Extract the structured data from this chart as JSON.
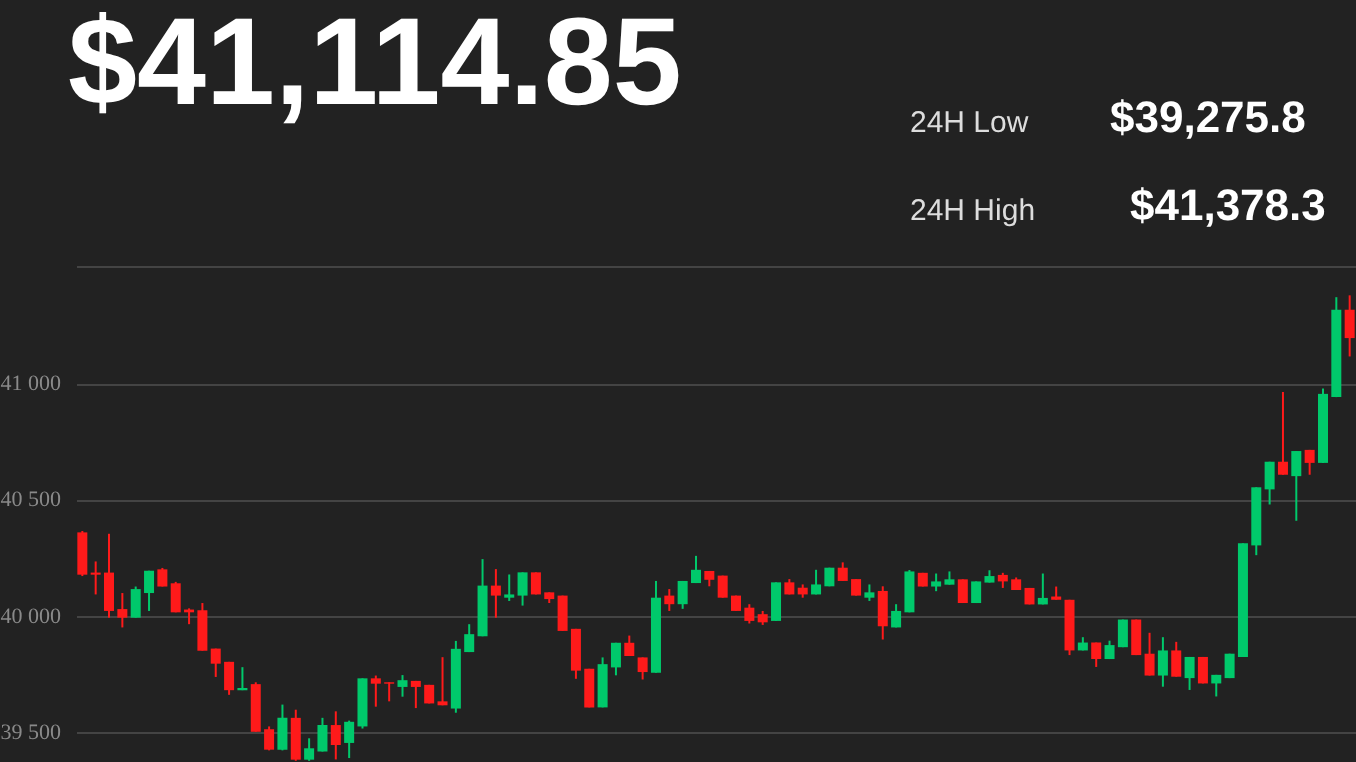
{
  "chart_data": {
    "type": "candlestick",
    "annotations": [
      "$41,114.85",
      "24H Low",
      "$39,275.8",
      "24H High",
      "$41,378.3"
    ],
    "categories": [
      null,
      null,
      null,
      null,
      null,
      null,
      null,
      null,
      null,
      null,
      null,
      null,
      null,
      null,
      null,
      null,
      null,
      null,
      null,
      null,
      null,
      null,
      null,
      null,
      null,
      null,
      null,
      null,
      null,
      null,
      null,
      null,
      null,
      null,
      null,
      null,
      null,
      null,
      null,
      null,
      null,
      null,
      null,
      null,
      null,
      null,
      null,
      null,
      null,
      null,
      null,
      null,
      null,
      null,
      null,
      null,
      null,
      null,
      null,
      null,
      null,
      null,
      null,
      null,
      null,
      null,
      null,
      null,
      null,
      null,
      null,
      null,
      null,
      null,
      null,
      null,
      null,
      null,
      null,
      null,
      null,
      null,
      null,
      null,
      null,
      null,
      null,
      null,
      null,
      null,
      null,
      null,
      null,
      null,
      null,
      null
    ],
    "ohlc": [
      [
        40358,
        40364,
        40170,
        40176
      ],
      [
        40185,
        40233,
        40091,
        40176
      ],
      [
        40185,
        40352,
        39991,
        40020
      ],
      [
        40028,
        40097,
        39949,
        39991
      ],
      [
        39991,
        40125,
        39991,
        40114
      ],
      [
        40097,
        40193,
        40020,
        40193
      ],
      [
        40199,
        40205,
        40125,
        40125
      ],
      [
        40139,
        40145,
        40014,
        40014
      ],
      [
        40026,
        40031,
        39963,
        40014
      ],
      [
        40023,
        40054,
        39849,
        39849
      ],
      [
        39858,
        39858,
        39736,
        39793
      ],
      [
        39801,
        39801,
        39659,
        39679
      ],
      [
        39679,
        39778,
        39679,
        39688
      ],
      [
        39705,
        39713,
        39500,
        39500
      ],
      [
        39511,
        39523,
        39420,
        39423
      ],
      [
        39423,
        39617,
        39420,
        39560
      ],
      [
        39560,
        39595,
        39375,
        39380
      ],
      [
        39380,
        39472,
        39375,
        39429
      ],
      [
        39415,
        39560,
        39415,
        39529
      ],
      [
        39529,
        39588,
        39381,
        39443
      ],
      [
        39452,
        39548,
        39387,
        39543
      ],
      [
        39523,
        39730,
        39514,
        39730
      ],
      [
        39730,
        39742,
        39608,
        39707
      ],
      [
        39713,
        39713,
        39631,
        39707
      ],
      [
        39693,
        39744,
        39651,
        39722
      ],
      [
        39719,
        39719,
        39602,
        39693
      ],
      [
        39702,
        39702,
        39622,
        39622
      ],
      [
        39631,
        39821,
        39614,
        39614
      ],
      [
        39600,
        39891,
        39582,
        39857
      ],
      [
        39843,
        39963,
        39843,
        39920
      ],
      [
        39911,
        40243,
        39911,
        40129
      ],
      [
        40129,
        40200,
        39991,
        40086
      ],
      [
        40077,
        40177,
        40063,
        40091
      ],
      [
        40086,
        40186,
        40043,
        40186
      ],
      [
        40186,
        40186,
        40091,
        40091
      ],
      [
        40100,
        40100,
        40054,
        40071
      ],
      [
        40086,
        40086,
        39934,
        39934
      ],
      [
        39943,
        39943,
        39728,
        39763
      ],
      [
        39771,
        39771,
        39605,
        39605
      ],
      [
        39605,
        39820,
        39605,
        39791
      ],
      [
        39777,
        39883,
        39743,
        39883
      ],
      [
        39883,
        39914,
        39826,
        39826
      ],
      [
        39820,
        39820,
        39725,
        39757
      ],
      [
        39754,
        40149,
        39754,
        40077
      ],
      [
        40086,
        40114,
        40020,
        40049
      ],
      [
        40049,
        40149,
        40029,
        40149
      ],
      [
        40140,
        40257,
        40140,
        40197
      ],
      [
        40192,
        40192,
        40126,
        40154
      ],
      [
        40172,
        40172,
        40077,
        40077
      ],
      [
        40086,
        40086,
        40020,
        40020
      ],
      [
        40034,
        40049,
        39966,
        39977
      ],
      [
        40006,
        40020,
        39960,
        39971
      ],
      [
        39977,
        40143,
        39977,
        40143
      ],
      [
        40143,
        40157,
        40091,
        40091
      ],
      [
        40120,
        40134,
        40077,
        40091
      ],
      [
        40091,
        40197,
        40091,
        40134
      ],
      [
        40126,
        40206,
        40126,
        40206
      ],
      [
        40206,
        40229,
        40149,
        40149
      ],
      [
        40157,
        40157,
        40086,
        40086
      ],
      [
        40077,
        40134,
        40063,
        40100
      ],
      [
        40106,
        40126,
        39897,
        39954
      ],
      [
        39949,
        40049,
        39949,
        40020
      ],
      [
        40014,
        40196,
        40014,
        40190
      ],
      [
        40184,
        40184,
        40125,
        40125
      ],
      [
        40125,
        40181,
        40105,
        40147
      ],
      [
        40133,
        40190,
        40133,
        40156
      ],
      [
        40156,
        40156,
        40054,
        40054
      ],
      [
        40054,
        40147,
        40054,
        40147
      ],
      [
        40142,
        40195,
        40142,
        40170
      ],
      [
        40175,
        40184,
        40119,
        40147
      ],
      [
        40156,
        40164,
        40110,
        40110
      ],
      [
        40119,
        40119,
        40048,
        40048
      ],
      [
        40048,
        40181,
        40048,
        40076
      ],
      [
        40082,
        40125,
        40068,
        40068
      ],
      [
        40068,
        40068,
        39830,
        39850
      ],
      [
        39850,
        39907,
        39850,
        39884
      ],
      [
        39884,
        39884,
        39779,
        39813
      ],
      [
        39813,
        39892,
        39813,
        39873
      ],
      [
        39864,
        39983,
        39864,
        39983
      ],
      [
        39983,
        39983,
        39830,
        39830
      ],
      [
        39836,
        39926,
        39742,
        39742
      ],
      [
        39742,
        39907,
        39694,
        39850
      ],
      [
        39850,
        39887,
        39737,
        39737
      ],
      [
        39731,
        39822,
        39680,
        39822
      ],
      [
        39822,
        39822,
        39708,
        39708
      ],
      [
        39708,
        39745,
        39652,
        39745
      ],
      [
        39731,
        39836,
        39731,
        39836
      ],
      [
        39822,
        40311,
        39822,
        40311
      ],
      [
        40302,
        40552,
        40260,
        40552
      ],
      [
        40543,
        40662,
        40478,
        40662
      ],
      [
        40662,
        40962,
        40606,
        40606
      ],
      [
        40600,
        40708,
        40408,
        40708
      ],
      [
        40713,
        40713,
        40606,
        40657
      ],
      [
        40657,
        40977,
        40657,
        40954
      ],
      [
        40940,
        41370,
        40940,
        41316
      ],
      [
        41316,
        41378,
        41115,
        41194
      ]
    ],
    "colors": [
      "#ff1a1a",
      "#ff1a1a",
      "#ff1a1a",
      "#ff1a1a",
      "#00c96b",
      "#00c96b",
      "#ff1a1a",
      "#ff1a1a",
      "#ff1a1a",
      "#ff1a1a",
      "#ff1a1a",
      "#ff1a1a",
      "#00c96b",
      "#ff1a1a",
      "#ff1a1a",
      "#00c96b",
      "#ff1a1a",
      "#00c96b",
      "#00c96b",
      "#ff1a1a",
      "#00c96b",
      "#00c96b",
      "#ff1a1a",
      "#ff1a1a",
      "#00c96b",
      "#ff1a1a",
      "#ff1a1a",
      "#ff1a1a",
      "#00c96b",
      "#00c96b",
      "#00c96b",
      "#ff1a1a",
      "#00c96b",
      "#00c96b",
      "#ff1a1a",
      "#ff1a1a",
      "#ff1a1a",
      "#ff1a1a",
      "#ff1a1a",
      "#00c96b",
      "#00c96b",
      "#ff1a1a",
      "#ff1a1a",
      "#00c96b",
      "#ff1a1a",
      "#00c96b",
      "#00c96b",
      "#ff1a1a",
      "#ff1a1a",
      "#ff1a1a",
      "#ff1a1a",
      "#ff1a1a",
      "#00c96b",
      "#ff1a1a",
      "#ff1a1a",
      "#00c96b",
      "#00c96b",
      "#ff1a1a",
      "#ff1a1a",
      "#00c96b",
      "#ff1a1a",
      "#00c96b",
      "#00c96b",
      "#ff1a1a",
      "#00c96b",
      "#00c96b",
      "#ff1a1a",
      "#00c96b",
      "#00c96b",
      "#ff1a1a",
      "#ff1a1a",
      "#ff1a1a",
      "#00c96b",
      "#ff1a1a",
      "#ff1a1a",
      "#00c96b",
      "#ff1a1a",
      "#00c96b",
      "#00c96b",
      "#ff1a1a",
      "#ff1a1a",
      "#00c96b",
      "#ff1a1a",
      "#00c96b",
      "#ff1a1a",
      "#00c96b",
      "#00c96b",
      "#00c96b",
      "#00c96b",
      "#00c96b",
      "#ff1a1a",
      "#00c96b",
      "#ff1a1a",
      "#00c96b",
      "#00c96b",
      "#ff1a1a"
    ],
    "ylim": [
      39370,
      41530
    ],
    "yticks": [
      {
        "value": 39500,
        "label": "39 500"
      },
      {
        "value": 40000,
        "label": "40 000"
      },
      {
        "value": 40500,
        "label": "40 500"
      },
      {
        "value": 41000,
        "label": "41 000"
      },
      {
        "value": 41500,
        "label": null
      }
    ],
    "grid": "y",
    "tick_labels": "y"
  }
}
